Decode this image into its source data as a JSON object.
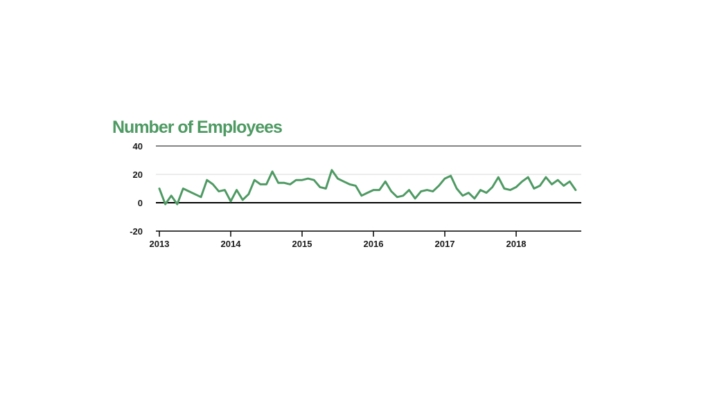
{
  "chart_data": {
    "type": "line",
    "title": "Number of Employees",
    "xlabel": "",
    "ylabel": "",
    "ylim": [
      -20,
      40
    ],
    "yticks": [
      "40",
      "20",
      "0",
      "-20"
    ],
    "xticks": [
      "2013",
      "2014",
      "2015",
      "2016",
      "2017",
      "2018"
    ],
    "color": "#4e9a63",
    "grid": true,
    "series": [
      {
        "x": [
          "2013-01",
          "2013-02",
          "2013-03",
          "2013-04",
          "2013-05",
          "2013-06",
          "2013-07",
          "2013-08",
          "2013-09",
          "2013-10",
          "2013-11",
          "2013-12",
          "2014-01",
          "2014-02",
          "2014-03",
          "2014-04",
          "2014-05",
          "2014-06",
          "2014-07",
          "2014-08",
          "2014-09",
          "2014-10",
          "2014-11",
          "2014-12",
          "2015-01",
          "2015-02",
          "2015-03",
          "2015-04",
          "2015-05",
          "2015-06",
          "2015-07",
          "2015-08",
          "2015-09",
          "2015-10",
          "2015-11",
          "2015-12",
          "2016-01",
          "2016-02",
          "2016-03",
          "2016-04",
          "2016-05",
          "2016-06",
          "2016-07",
          "2016-08",
          "2016-09",
          "2016-10",
          "2016-11",
          "2016-12",
          "2017-01",
          "2017-02",
          "2017-03",
          "2017-04",
          "2017-05",
          "2017-06",
          "2017-07",
          "2017-08",
          "2017-09",
          "2017-10",
          "2017-11",
          "2017-12",
          "2018-01",
          "2018-02",
          "2018-03",
          "2018-04",
          "2018-05",
          "2018-06",
          "2018-07",
          "2018-08",
          "2018-09",
          "2018-10",
          "2018-11"
        ],
        "values": [
          10,
          -1,
          5,
          -1,
          10,
          8,
          6,
          4,
          16,
          13,
          8,
          9,
          1,
          9,
          2,
          6,
          16,
          13,
          13,
          22,
          14,
          14,
          13,
          16,
          16,
          17,
          16,
          11,
          10,
          23,
          17,
          15,
          13,
          12,
          5,
          7,
          9,
          9,
          15,
          8,
          4,
          5,
          9,
          3,
          8,
          9,
          8,
          12,
          17,
          19,
          10,
          5,
          7,
          3,
          9,
          7,
          11,
          18,
          10,
          9,
          11,
          15,
          18,
          10,
          12,
          18,
          13,
          16,
          12,
          15,
          9
        ]
      }
    ]
  }
}
